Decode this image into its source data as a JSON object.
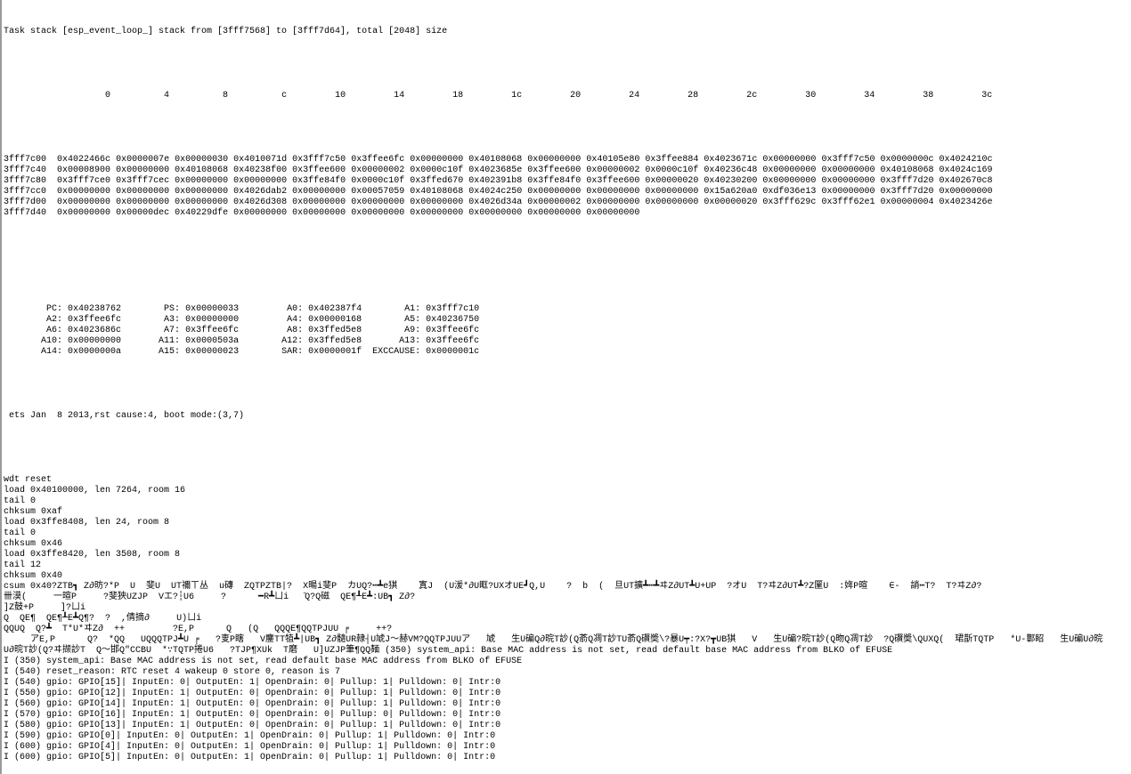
{
  "task_header": "Task stack [esp_event_loop_] stack from [3fff7568] to [3fff7d64], total [2048] size",
  "dump": {
    "columns": [
      "0",
      "4",
      "8",
      "c",
      "10",
      "14",
      "18",
      "1c",
      "20",
      "24",
      "28",
      "2c",
      "30",
      "34",
      "38",
      "3c"
    ],
    "rows": [
      {
        "addr": "3fff7c00",
        "values": [
          "0x4022466c",
          "0x0000007e",
          "0x00000030",
          "0x4010071d",
          "0x3fff7c50",
          "0x3ffee6fc",
          "0x00000000",
          "0x40108068",
          "0x00000000",
          "0x40105e80",
          "0x3ffee884",
          "0x4023671c",
          "0x00000000",
          "0x3fff7c50",
          "0x0000000c",
          "0x4024210c"
        ]
      },
      {
        "addr": "3fff7c40",
        "values": [
          "0x00008900",
          "0x00000000",
          "0x40108068",
          "0x40238f00",
          "0x3ffee600",
          "0x00000002",
          "0x0000c10f",
          "0x4023685e",
          "0x3ffee600",
          "0x00000002",
          "0x0000c10f",
          "0x40236c48",
          "0x00000000",
          "0x00000000",
          "0x40108068",
          "0x4024c169"
        ]
      },
      {
        "addr": "3fff7c80",
        "values": [
          "0x3fff7ce0",
          "0x3fff7cec",
          "0x00000000",
          "0x00000000",
          "0x3ffe84f0",
          "0x0000c10f",
          "0x3ffed670",
          "0x402391b8",
          "0x3ffe84f0",
          "0x3ffee600",
          "0x00000020",
          "0x40230200",
          "0x00000000",
          "0x00000000",
          "0x3fff7d20",
          "0x402670c8"
        ]
      },
      {
        "addr": "3fff7cc0",
        "values": [
          "0x00000000",
          "0x00000000",
          "0x00000000",
          "0x4026dab2",
          "0x00000000",
          "0x00057059",
          "0x40108068",
          "0x4024c250",
          "0x00000000",
          "0x00000000",
          "0x00000000",
          "0x15a620a0",
          "0xdf036e13",
          "0x00000000",
          "0x3fff7d20",
          "0x00000000"
        ]
      },
      {
        "addr": "3fff7d00",
        "values": [
          "0x00000000",
          "0x00000000",
          "0x00000000",
          "0x4026d308",
          "0x00000000",
          "0x00000000",
          "0x00000000",
          "0x4026d34a",
          "0x00000002",
          "0x00000000",
          "0x00000000",
          "0x00000020",
          "0x3fff629c",
          "0x3fff62e1",
          "0x00000004",
          "0x4023426e"
        ]
      },
      {
        "addr": "3fff7d40",
        "values": [
          "0x00000000",
          "0x00000dec",
          "0x40229dfe",
          "0x00000000",
          "0x00000000",
          "0x00000000",
          "0x00000000",
          "0x00000000",
          "0x00000000",
          "0x00000000"
        ]
      }
    ]
  },
  "registers": [
    [
      {
        "n": "PC",
        "v": "0x40238762"
      },
      {
        "n": "PS",
        "v": "0x00000033"
      },
      {
        "n": "A0",
        "v": "0x402387f4"
      },
      {
        "n": "A1",
        "v": "0x3fff7c10"
      }
    ],
    [
      {
        "n": "A2",
        "v": "0x3ffee6fc"
      },
      {
        "n": "A3",
        "v": "0x00000000"
      },
      {
        "n": "A4",
        "v": "0x00000168"
      },
      {
        "n": "A5",
        "v": "0x40236750"
      }
    ],
    [
      {
        "n": "A6",
        "v": "0x4023686c"
      },
      {
        "n": "A7",
        "v": "0x3ffee6fc"
      },
      {
        "n": "A8",
        "v": "0x3ffed5e8"
      },
      {
        "n": "A9",
        "v": "0x3ffee6fc"
      }
    ],
    [
      {
        "n": "A10",
        "v": "0x00000000"
      },
      {
        "n": "A11",
        "v": "0x0000503a"
      },
      {
        "n": "A12",
        "v": "0x3ffed5e8"
      },
      {
        "n": "A13",
        "v": "0x3ffee6fc"
      }
    ],
    [
      {
        "n": "A14",
        "v": "0x0000000a"
      },
      {
        "n": "A15",
        "v": "0x00000023"
      },
      {
        "n": "SAR",
        "v": "0x0000001f"
      },
      {
        "n": "EXCCAUSE",
        "v": "0x0000001c"
      }
    ]
  ],
  "boot_line": " ets Jan  8 2013,rst cause:4, boot mode:(3,7)",
  "log": [
    "wdt reset",
    "load 0x40100000, len 7264, room 16",
    "tail 0",
    "chksum 0xaf",
    "load 0x3ffe8408, len 24, room 8",
    "tail 0",
    "chksum 0x46",
    "load 0x3ffe8420, len 3508, room 8",
    "tail 12",
    "chksum 0x40",
    "csum 0x40?ZTB┓ Z∂昉?*P  U  斐U  UT禰ㄒ丛  u磚  ZQTPZTB|?  X暘i斐P  カUQ?┅┻e猉    寘J  (U湲*∂U眶?UXオUE┛Q,U    ?  b  (  旦UT擴┻┅┻ヰZ∂UT┻U+UP  ?オU  T?ヰZ∂UT┻?Z匰U  :姩P暄    ∈-  誚┅T?  T?ヰZ∂?",
    "卌漠(     一暄P     ?斐狹UZJP  Vエ?┆U6     ?      ━R┻ㄩi   ̄Q?Q磁  QE¶┸E┻:UB┓ Z∂?",
    "]Z鼓+P     ]?ㄩi",
    "Q  QE¶  QE¶┸E┻Q¶?  ?  ,倩摘∂     U)ㄩi",
    "QQUQ  Q?┻  T*U*ヰZ∂  ++         ?E,P      Q   (Q   QQQE¶QQTPJUU ╒     ++?",
    "     アE,P      Q?  *QQ   UQQQTPJ┻U ╒   ?叓P瞎   V鏖TT犆┻|UB┓ Z∂髓UR隷┤U虓J～赫VM?QQTPJUUア   虓   生U碥Q∂晥T訬(Q萮Q凋T訬TU萮Q礥奬\\?暴U┯:?X?┳UB猉   V   生U碥?晥T訬(Q昒Q凋T訬  ?Q礥奬\\QUXQ(  珺斮TQTP   *U-鄿眧   生U碥U∂晥",
    "U∂晥T訬(Q?ヰ撷訬T  Q～邯Q″CCBU  *∵TQTP捲U6   ?TJP¶XUk  T磨   U]UZJP筆¶QQ麺 (350) system_api: Base MAC address is not set, read default base MAC address from BLKO of EFUSE",
    "I (350) system_api: Base MAC address is not set, read default base MAC address from BLKO of EFUSE",
    "I (540) reset_reason: RTC reset 4 wakeup 0 store 0, reason is 7",
    "I (540) gpio: GPIO[15]| InputEn: 0| OutputEn: 1| OpenDrain: 0| Pullup: 1| Pulldown: 0| Intr:0",
    "I (550) gpio: GPIO[12]| InputEn: 1| OutputEn: 0| OpenDrain: 0| Pullup: 1| Pulldown: 0| Intr:0",
    "I (560) gpio: GPIO[14]| InputEn: 1| OutputEn: 0| OpenDrain: 0| Pullup: 1| Pulldown: 0| Intr:0",
    "I (570) gpio: GPIO[16]| InputEn: 1| OutputEn: 0| OpenDrain: 0| Pullup: 0| Pulldown: 0| Intr:0",
    "I (580) gpio: GPIO[13]| InputEn: 1| OutputEn: 0| OpenDrain: 0| Pullup: 1| Pulldown: 0| Intr:0",
    "I (590) gpio: GPIO[0]| InputEn: 0| OutputEn: 1| OpenDrain: 0| Pullup: 1| Pulldown: 0| Intr:0",
    "I (600) gpio: GPIO[4]| InputEn: 0| OutputEn: 1| OpenDrain: 0| Pullup: 1| Pulldown: 0| Intr:0",
    "I (600) gpio: GPIO[5]| InputEn: 0| OutputEn: 1| OpenDrain: 0| Pullup: 1| Pulldown: 0| Intr:0"
  ]
}
